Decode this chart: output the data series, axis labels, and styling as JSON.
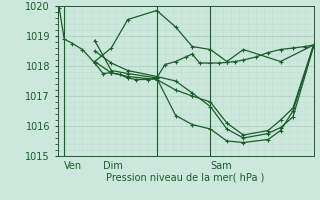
{
  "title": "Pression niveau de la mer( hPa )",
  "ylim": [
    1015,
    1020
  ],
  "yticks_major": [
    1015,
    1016,
    1017,
    1018,
    1019,
    1020
  ],
  "bg_color": "#cce8dc",
  "line_color": "#1a5c2a",
  "grid_major_color": "#aad4c0",
  "grid_minor_color": "#c0e0d0",
  "xtick_labels": [
    "Ven",
    "Dim",
    "Sam"
  ],
  "xtick_positions": [
    8,
    55,
    185
  ],
  "vlines_x": [
    8,
    120,
    185
  ],
  "xlim": [
    0,
    310
  ],
  "series": [
    {
      "x": [
        2,
        8,
        18,
        30,
        45,
        55,
        65,
        75,
        85,
        95,
        110,
        120,
        130,
        143,
        155,
        163,
        172,
        185,
        195,
        205,
        215,
        225,
        240,
        255,
        270,
        285,
        300,
        310
      ],
      "y": [
        1019.92,
        1018.9,
        1018.75,
        1018.55,
        1018.1,
        1017.75,
        1017.78,
        1017.72,
        1017.6,
        1017.55,
        1017.55,
        1017.6,
        1018.05,
        1018.15,
        1018.3,
        1018.4,
        1018.1,
        1018.1,
        1018.1,
        1018.12,
        1018.15,
        1018.2,
        1018.3,
        1018.45,
        1018.55,
        1018.6,
        1018.65,
        1018.7
      ]
    },
    {
      "x": [
        45,
        65,
        85,
        120,
        143,
        163,
        185,
        205,
        225,
        270,
        310
      ],
      "y": [
        1018.15,
        1018.6,
        1019.55,
        1019.85,
        1019.3,
        1018.65,
        1018.55,
        1018.15,
        1018.55,
        1018.15,
        1018.7
      ]
    },
    {
      "x": [
        45,
        65,
        85,
        120,
        143,
        163,
        185,
        205,
        225,
        255,
        270,
        285,
        310
      ],
      "y": [
        1018.85,
        1017.85,
        1017.75,
        1017.6,
        1016.35,
        1016.05,
        1015.9,
        1015.5,
        1015.45,
        1015.55,
        1015.85,
        1016.5,
        1018.7
      ]
    },
    {
      "x": [
        45,
        65,
        85,
        120,
        143,
        163,
        185,
        205,
        225,
        255,
        270,
        285,
        310
      ],
      "y": [
        1018.5,
        1018.1,
        1017.85,
        1017.65,
        1017.5,
        1017.1,
        1016.65,
        1015.9,
        1015.6,
        1015.75,
        1015.95,
        1016.3,
        1018.65
      ]
    },
    {
      "x": [
        45,
        65,
        85,
        120,
        143,
        163,
        185,
        205,
        225,
        255,
        270,
        285,
        310
      ],
      "y": [
        1018.15,
        1017.77,
        1017.65,
        1017.55,
        1017.2,
        1017.0,
        1016.8,
        1016.1,
        1015.7,
        1015.85,
        1016.2,
        1016.6,
        1018.7
      ]
    }
  ],
  "marker": "+",
  "markersize": 3,
  "linewidth": 0.9,
  "title_fontsize": 7,
  "tick_fontsize": 7
}
